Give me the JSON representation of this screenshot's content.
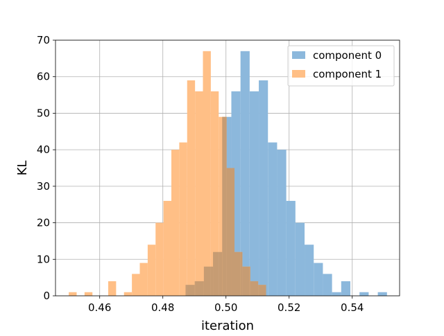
{
  "chart_data": {
    "type": "bar",
    "title": "",
    "xlabel": "iteration",
    "ylabel": "KL",
    "xlim": [
      0.446,
      0.555
    ],
    "ylim": [
      0,
      70
    ],
    "xticks": [
      0.46,
      0.48,
      0.5,
      0.52,
      0.54
    ],
    "xtick_labels": [
      "0.46",
      "0.48",
      "0.50",
      "0.52",
      "0.54"
    ],
    "yticks": [
      0,
      10,
      20,
      30,
      40,
      50,
      60,
      70
    ],
    "ytick_labels": [
      "0",
      "10",
      "20",
      "30",
      "40",
      "50",
      "60",
      "70"
    ],
    "grid": true,
    "legend_position": "top-right",
    "overlap_color": "#c69c73",
    "series": [
      {
        "name": "component 0",
        "color": "#8cb8dc",
        "bins": [
          {
            "x0": 0.4872,
            "x1": 0.4901,
            "value": 3
          },
          {
            "x0": 0.4901,
            "x1": 0.493,
            "value": 4
          },
          {
            "x0": 0.493,
            "x1": 0.4959,
            "value": 8
          },
          {
            "x0": 0.4959,
            "x1": 0.4988,
            "value": 12
          },
          {
            "x0": 0.4988,
            "x1": 0.5017,
            "value": 49
          },
          {
            "x0": 0.5017,
            "x1": 0.5046,
            "value": 56
          },
          {
            "x0": 0.5046,
            "x1": 0.5075,
            "value": 67
          },
          {
            "x0": 0.5075,
            "x1": 0.5104,
            "value": 56
          },
          {
            "x0": 0.5104,
            "x1": 0.5133,
            "value": 59
          },
          {
            "x0": 0.5133,
            "x1": 0.5162,
            "value": 42
          },
          {
            "x0": 0.5162,
            "x1": 0.5191,
            "value": 40
          },
          {
            "x0": 0.5191,
            "x1": 0.522,
            "value": 26
          },
          {
            "x0": 0.522,
            "x1": 0.5249,
            "value": 20
          },
          {
            "x0": 0.5249,
            "x1": 0.5278,
            "value": 14
          },
          {
            "x0": 0.5278,
            "x1": 0.5307,
            "value": 9
          },
          {
            "x0": 0.5307,
            "x1": 0.5336,
            "value": 6
          },
          {
            "x0": 0.5336,
            "x1": 0.5365,
            "value": 1
          },
          {
            "x0": 0.5365,
            "x1": 0.5394,
            "value": 4
          },
          {
            "x0": 0.5423,
            "x1": 0.5452,
            "value": 1
          },
          {
            "x0": 0.5481,
            "x1": 0.551,
            "value": 1
          }
        ]
      },
      {
        "name": "component 1",
        "color": "#ffbf86",
        "bins": [
          {
            "x0": 0.4502,
            "x1": 0.4527,
            "value": 1
          },
          {
            "x0": 0.4552,
            "x1": 0.4577,
            "value": 1
          },
          {
            "x0": 0.4627,
            "x1": 0.4652,
            "value": 4
          },
          {
            "x0": 0.4677,
            "x1": 0.4702,
            "value": 1
          },
          {
            "x0": 0.4702,
            "x1": 0.4727,
            "value": 6
          },
          {
            "x0": 0.4727,
            "x1": 0.4752,
            "value": 9
          },
          {
            "x0": 0.4752,
            "x1": 0.4777,
            "value": 14
          },
          {
            "x0": 0.4777,
            "x1": 0.4802,
            "value": 20
          },
          {
            "x0": 0.4802,
            "x1": 0.4827,
            "value": 26
          },
          {
            "x0": 0.4827,
            "x1": 0.4852,
            "value": 40
          },
          {
            "x0": 0.4852,
            "x1": 0.4877,
            "value": 42
          },
          {
            "x0": 0.4877,
            "x1": 0.4902,
            "value": 59
          },
          {
            "x0": 0.4902,
            "x1": 0.4927,
            "value": 56
          },
          {
            "x0": 0.4927,
            "x1": 0.4952,
            "value": 67
          },
          {
            "x0": 0.4952,
            "x1": 0.4977,
            "value": 56
          },
          {
            "x0": 0.4977,
            "x1": 0.5002,
            "value": 49
          },
          {
            "x0": 0.5002,
            "x1": 0.5027,
            "value": 35
          },
          {
            "x0": 0.5027,
            "x1": 0.5052,
            "value": 12
          },
          {
            "x0": 0.5052,
            "x1": 0.5077,
            "value": 8
          },
          {
            "x0": 0.5077,
            "x1": 0.5102,
            "value": 4
          },
          {
            "x0": 0.5102,
            "x1": 0.5127,
            "value": 3
          }
        ]
      }
    ]
  }
}
